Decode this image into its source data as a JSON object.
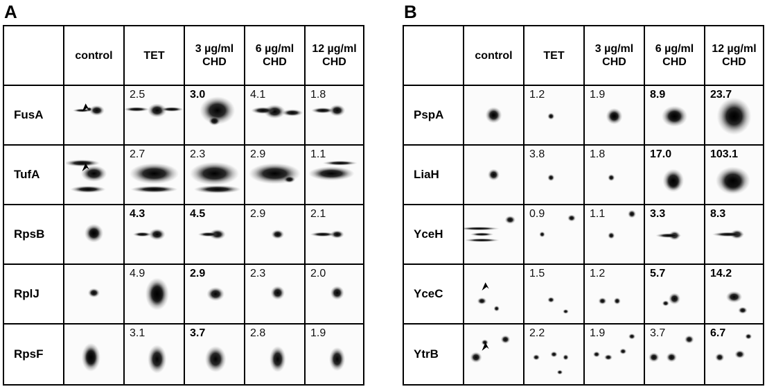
{
  "panels": [
    {
      "letter": "A",
      "headers": [
        "control",
        "TET",
        "3 µg/ml\nCHD",
        "6 µg/ml\nCHD",
        "12 µg/ml\nCHD"
      ],
      "rows": [
        {
          "label": "FusA",
          "values": [
            "2.5",
            "3.0",
            "4.1",
            "1.8"
          ],
          "bold": [
            false,
            true,
            false,
            false
          ],
          "arrow": true,
          "spots": [
            [
              [
                55,
                42,
                13,
                9
              ],
              [
                42,
                40,
                5,
                4
              ],
              [
                30,
                42,
                16,
                3
              ]
            ],
            [
              [
                55,
                42,
                16,
                12
              ],
              [
                20,
                40,
                22,
                4
              ],
              [
                80,
                40,
                20,
                4
              ]
            ],
            [
              [
                55,
                42,
                30,
                24
              ],
              [
                50,
                60,
                10,
                8
              ]
            ],
            [
              [
                50,
                44,
                18,
                12
              ],
              [
                30,
                42,
                20,
                6
              ],
              [
                80,
                46,
                18,
                6
              ]
            ],
            [
              [
                55,
                42,
                14,
                10
              ],
              [
                30,
                42,
                20,
                5
              ]
            ]
          ]
        },
        {
          "label": "TufA",
          "values": [
            "2.7",
            "2.3",
            "2.9",
            "1.1"
          ],
          "bold": [
            false,
            false,
            false,
            false
          ],
          "arrow": true,
          "spots": [
            [
              [
                50,
                48,
                22,
                14
              ],
              [
                30,
                30,
                30,
                6
              ],
              [
                40,
                75,
                30,
                6
              ]
            ],
            [
              [
                50,
                48,
                42,
                18
              ],
              [
                50,
                75,
                40,
                6
              ]
            ],
            [
              [
                50,
                48,
                42,
                20
              ],
              [
                55,
                75,
                40,
                7
              ]
            ],
            [
              [
                50,
                48,
                44,
                18
              ],
              [
                75,
                58,
                10,
                6
              ]
            ],
            [
              [
                45,
                48,
                40,
                12
              ],
              [
                60,
                30,
                30,
                4
              ]
            ]
          ]
        },
        {
          "label": "RpsB",
          "values": [
            "4.3",
            "4.5",
            "2.9",
            "2.1"
          ],
          "bold": [
            true,
            true,
            false,
            false
          ],
          "arrow": false,
          "spots": [
            [
              [
                50,
                48,
                9,
                9
              ],
              [
                50,
                48,
                16,
                16
              ]
            ],
            [
              [
                55,
                50,
                14,
                10
              ],
              [
                30,
                50,
                16,
                4
              ]
            ],
            [
              [
                55,
                50,
                14,
                9
              ],
              [
                40,
                50,
                18,
                4
              ]
            ],
            [
              [
                55,
                50,
                11,
                8
              ]
            ],
            [
              [
                55,
                50,
                12,
                7
              ],
              [
                30,
                50,
                22,
                4
              ]
            ]
          ]
        },
        {
          "label": "RplJ",
          "values": [
            "4.9",
            "2.9",
            "2.3",
            "2.0"
          ],
          "bold": [
            false,
            true,
            false,
            false
          ],
          "arrow": false,
          "spots": [
            [
              [
                50,
                48,
                10,
                8
              ]
            ],
            [
              [
                55,
                50,
                12,
                20
              ],
              [
                55,
                50,
                20,
                28
              ]
            ],
            [
              [
                52,
                50,
                15,
                12
              ]
            ],
            [
              [
                55,
                48,
                12,
                12
              ]
            ],
            [
              [
                55,
                48,
                12,
                12
              ]
            ]
          ]
        },
        {
          "label": "RpsF",
          "values": [
            "3.1",
            "3.7",
            "2.8",
            "1.9"
          ],
          "bold": [
            false,
            true,
            false,
            false
          ],
          "arrow": false,
          "spots": [
            [
              [
                45,
                55,
                10,
                16
              ],
              [
                45,
                55,
                16,
                24
              ]
            ],
            [
              [
                55,
                58,
                16,
                24
              ]
            ],
            [
              [
                52,
                58,
                18,
                22
              ]
            ],
            [
              [
                55,
                58,
                14,
                22
              ]
            ],
            [
              [
                55,
                58,
                14,
                20
              ]
            ]
          ]
        }
      ]
    },
    {
      "letter": "B",
      "headers": [
        "control",
        "TET",
        "3 µg/ml\nCHD",
        "6 µg/ml\nCHD",
        "12 µg/ml\nCHD"
      ],
      "rows": [
        {
          "label": "PspA",
          "values": [
            "1.2",
            "1.9",
            "8.9",
            "23.7"
          ],
          "bold": [
            false,
            false,
            true,
            true
          ],
          "arrow": false,
          "spots": [
            [
              [
                50,
                50,
                6,
                6
              ],
              [
                50,
                50,
                14,
                14
              ]
            ],
            [
              [
                45,
                52,
                6,
                6
              ]
            ],
            [
              [
                50,
                52,
                7,
                7
              ],
              [
                50,
                52,
                14,
                14
              ]
            ],
            [
              [
                50,
                52,
                12,
                11
              ],
              [
                50,
                52,
                22,
                18
              ]
            ],
            [
              [
                50,
                52,
                16,
                14
              ],
              [
                50,
                52,
                30,
                32
              ]
            ]
          ]
        },
        {
          "label": "LiaH",
          "values": [
            "3.8",
            "1.8",
            "17.0",
            "103.1"
          ],
          "bold": [
            false,
            false,
            true,
            true
          ],
          "arrow": false,
          "spots": [
            [
              [
                50,
                50,
                10,
                10
              ]
            ],
            [
              [
                45,
                55,
                6,
                6
              ]
            ],
            [
              [
                45,
                55,
                6,
                6
              ]
            ],
            [
              [
                48,
                65,
                12,
                12
              ],
              [
                48,
                60,
                18,
                20
              ]
            ],
            [
              [
                48,
                65,
                20,
                16
              ],
              [
                48,
                60,
                30,
                24
              ]
            ]
          ]
        },
        {
          "label": "YceH",
          "values": [
            "0.9",
            "1.1",
            "3.3",
            "8.3"
          ],
          "bold": [
            false,
            false,
            true,
            true
          ],
          "arrow": false,
          "spots": [
            [
              [
                78,
                25,
                9,
                7
              ],
              [
                30,
                50,
                20,
                3
              ],
              [
                25,
                40,
                35,
                3
              ],
              [
                30,
                60,
                30,
                3
              ]
            ],
            [
              [
                30,
                50,
                5,
                5
              ],
              [
                80,
                22,
                7,
                6
              ]
            ],
            [
              [
                45,
                52,
                6,
                6
              ],
              [
                80,
                15,
                7,
                7
              ]
            ],
            [
              [
                50,
                52,
                10,
                8
              ],
              [
                40,
                52,
                22,
                4
              ]
            ],
            [
              [
                55,
                50,
                12,
                8
              ],
              [
                40,
                50,
                28,
                4
              ]
            ]
          ]
        },
        {
          "label": "YceC",
          "values": [
            "1.5",
            "1.2",
            "5.7",
            "14.2"
          ],
          "bold": [
            false,
            false,
            true,
            true
          ],
          "arrow": true,
          "spots": [
            [
              [
                30,
                62,
                8,
                6
              ],
              [
                55,
                75,
                5,
                5
              ]
            ],
            [
              [
                45,
                60,
                6,
                5
              ],
              [
                70,
                80,
                5,
                4
              ]
            ],
            [
              [
                30,
                62,
                7,
                6
              ],
              [
                55,
                62,
                6,
                6
              ]
            ],
            [
              [
                50,
                58,
                10,
                10
              ],
              [
                35,
                66,
                6,
                5
              ]
            ],
            [
              [
                50,
                55,
                14,
                10
              ],
              [
                65,
                78,
                8,
                6
              ]
            ]
          ]
        },
        {
          "label": "YtrB",
          "values": [
            "2.2",
            "1.9",
            "3.7",
            "6.7"
          ],
          "bold": [
            false,
            false,
            false,
            true
          ],
          "arrow": true,
          "spots": [
            [
              [
                20,
                55,
                10,
                9
              ],
              [
                70,
                25,
                8,
                7
              ],
              [
                35,
                30,
                6,
                5
              ]
            ],
            [
              [
                20,
                55,
                6,
                5
              ],
              [
                50,
                50,
                6,
                5
              ],
              [
                70,
                55,
                5,
                5
              ],
              [
                60,
                80,
                5,
                4
              ]
            ],
            [
              [
                20,
                50,
                6,
                5
              ],
              [
                40,
                55,
                7,
                5
              ],
              [
                65,
                45,
                6,
                5
              ],
              [
                80,
                20,
                6,
                5
              ]
            ],
            [
              [
                15,
                55,
                9,
                8
              ],
              [
                45,
                55,
                9,
                8
              ],
              [
                75,
                25,
                8,
                7
              ]
            ],
            [
              [
                25,
                55,
                8,
                7
              ],
              [
                60,
                50,
                9,
                7
              ],
              [
                75,
                20,
                6,
                5
              ]
            ]
          ]
        }
      ]
    }
  ]
}
